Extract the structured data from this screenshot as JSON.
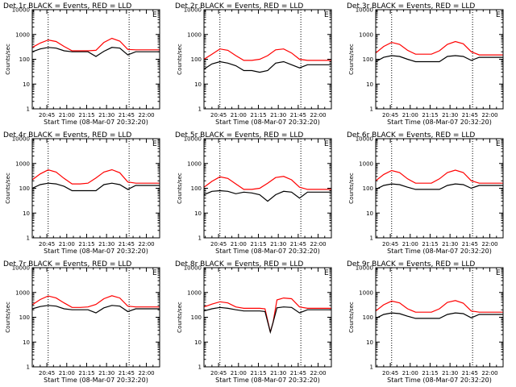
{
  "figure": {
    "background": "#ffffff",
    "axis_color": "#000000",
    "events_color": "#000000",
    "lld_color": "#ff0000"
  },
  "chart_data": [
    {
      "type": "line",
      "title": "Det 1r BLACK = Events, RED = LLD",
      "corner_label": "E",
      "xlabel": "Start Time (08-Mar-07 20:32:20)",
      "ylabel": "Counts/sec",
      "xlim": [
        "20:34",
        "22:10"
      ],
      "ylim": [
        1,
        10000
      ],
      "yscale": "log",
      "x_ticks": [
        "20:45",
        "21:00",
        "21:15",
        "21:30",
        "21:45",
        "22:00"
      ],
      "y_ticks": [
        "1",
        "10",
        "100",
        "1000",
        "10000"
      ],
      "marker_lines": [
        "20:46",
        "21:47"
      ],
      "x": [
        "20:34",
        "20:40",
        "20:46",
        "20:52",
        "20:58",
        "21:04",
        "21:10",
        "21:16",
        "21:22",
        "21:28",
        "21:34",
        "21:40",
        "21:46",
        "21:52",
        "21:58",
        "22:04",
        "22:10"
      ],
      "series": [
        {
          "role": "lld",
          "values": [
            300,
            450,
            600,
            520,
            330,
            220,
            220,
            220,
            230,
            480,
            700,
            540,
            250,
            240,
            240,
            240,
            240
          ]
        },
        {
          "role": "events",
          "values": [
            200,
            260,
            300,
            280,
            220,
            200,
            200,
            200,
            130,
            210,
            300,
            280,
            150,
            200,
            200,
            200,
            200
          ]
        }
      ]
    },
    {
      "type": "line",
      "title": "Det 2r BLACK = Events, RED = LLD",
      "corner_label": "E",
      "xlabel": "Start Time (08-Mar-07 20:32:20)",
      "ylabel": "Counts/sec",
      "xlim": [
        "20:34",
        "22:10"
      ],
      "ylim": [
        1,
        10000
      ],
      "yscale": "log",
      "x_ticks": [
        "20:45",
        "21:00",
        "21:15",
        "21:30",
        "21:45",
        "22:00"
      ],
      "y_ticks": [
        "1",
        "10",
        "100",
        "1000",
        "10000"
      ],
      "marker_lines": [
        "20:46",
        "21:47"
      ],
      "x": [
        "20:34",
        "20:40",
        "20:46",
        "20:52",
        "20:58",
        "21:04",
        "21:10",
        "21:16",
        "21:22",
        "21:28",
        "21:34",
        "21:40",
        "21:46",
        "21:52",
        "21:58",
        "22:04",
        "22:10"
      ],
      "series": [
        {
          "role": "lld",
          "values": [
            100,
            160,
            260,
            230,
            140,
            90,
            90,
            100,
            140,
            240,
            260,
            180,
            100,
            90,
            90,
            90,
            90
          ]
        },
        {
          "role": "events",
          "values": [
            40,
            65,
            80,
            70,
            55,
            35,
            35,
            30,
            35,
            70,
            80,
            60,
            45,
            60,
            60,
            60,
            60
          ]
        }
      ]
    },
    {
      "type": "line",
      "title": "Det 3r BLACK = Events, RED = LLD",
      "corner_label": "E",
      "xlabel": "Start Time (08-Mar-07 20:32:20)",
      "ylabel": "Counts/sec",
      "xlim": [
        "20:34",
        "22:10"
      ],
      "ylim": [
        1,
        10000
      ],
      "yscale": "log",
      "x_ticks": [
        "20:45",
        "21:00",
        "21:15",
        "21:30",
        "21:45",
        "22:00"
      ],
      "y_ticks": [
        "1",
        "10",
        "100",
        "1000",
        "10000"
      ],
      "marker_lines": [
        "20:46",
        "21:47"
      ],
      "x": [
        "20:34",
        "20:40",
        "20:46",
        "20:52",
        "20:58",
        "21:04",
        "21:10",
        "21:16",
        "21:22",
        "21:28",
        "21:34",
        "21:40",
        "21:46",
        "21:52",
        "21:58",
        "22:04",
        "22:10"
      ],
      "series": [
        {
          "role": "lld",
          "values": [
            180,
            330,
            480,
            400,
            230,
            160,
            160,
            160,
            220,
            400,
            520,
            420,
            200,
            150,
            150,
            150,
            150
          ]
        },
        {
          "role": "events",
          "values": [
            80,
            120,
            140,
            130,
            100,
            80,
            80,
            80,
            80,
            130,
            140,
            130,
            90,
            120,
            120,
            120,
            120
          ]
        }
      ]
    },
    {
      "type": "line",
      "title": "Det 4r BLACK = Events, RED = LLD",
      "corner_label": "E",
      "xlabel": "Start Time (08-Mar-07 20:32:20)",
      "ylabel": "Counts/sec",
      "xlim": [
        "20:34",
        "22:10"
      ],
      "ylim": [
        1,
        10000
      ],
      "yscale": "log",
      "x_ticks": [
        "20:45",
        "21:00",
        "21:15",
        "21:30",
        "21:45",
        "22:00"
      ],
      "y_ticks": [
        "1",
        "10",
        "100",
        "1000",
        "10000"
      ],
      "marker_lines": [
        "20:46",
        "21:47"
      ],
      "x": [
        "20:34",
        "20:40",
        "20:46",
        "20:52",
        "20:58",
        "21:04",
        "21:10",
        "21:16",
        "21:22",
        "21:28",
        "21:34",
        "21:40",
        "21:46",
        "21:52",
        "21:58",
        "22:04",
        "22:10"
      ],
      "series": [
        {
          "role": "lld",
          "values": [
            220,
            380,
            550,
            450,
            250,
            150,
            150,
            160,
            260,
            450,
            560,
            420,
            180,
            160,
            160,
            160,
            160
          ]
        },
        {
          "role": "events",
          "values": [
            100,
            140,
            160,
            150,
            120,
            80,
            80,
            80,
            80,
            140,
            160,
            140,
            90,
            130,
            130,
            130,
            130
          ]
        }
      ]
    },
    {
      "type": "line",
      "title": "Det 5r BLACK = Events, RED = LLD",
      "corner_label": "E",
      "xlabel": "Start Time (08-Mar-07 20:32:20)",
      "ylabel": "Counts/sec",
      "xlim": [
        "20:34",
        "22:10"
      ],
      "ylim": [
        1,
        10000
      ],
      "yscale": "log",
      "x_ticks": [
        "20:45",
        "21:00",
        "21:15",
        "21:30",
        "21:45",
        "22:00"
      ],
      "y_ticks": [
        "1",
        "10",
        "100",
        "1000",
        "10000"
      ],
      "marker_lines": [
        "20:46",
        "21:47"
      ],
      "x": [
        "20:34",
        "20:40",
        "20:46",
        "20:52",
        "20:58",
        "21:04",
        "21:10",
        "21:16",
        "21:22",
        "21:28",
        "21:34",
        "21:40",
        "21:46",
        "21:52",
        "21:58",
        "22:04",
        "22:10"
      ],
      "series": [
        {
          "role": "lld",
          "values": [
            110,
            190,
            290,
            250,
            150,
            90,
            90,
            100,
            160,
            270,
            300,
            220,
            110,
            90,
            90,
            90,
            90
          ]
        },
        {
          "role": "events",
          "values": [
            55,
            75,
            80,
            75,
            60,
            70,
            65,
            55,
            30,
            55,
            75,
            70,
            40,
            70,
            70,
            70,
            70
          ]
        }
      ]
    },
    {
      "type": "line",
      "title": "Det 6r BLACK = Events, RED = LLD",
      "corner_label": "E",
      "xlabel": "Start Time (08-Mar-07 20:32:20)",
      "ylabel": "Counts/sec",
      "xlim": [
        "20:34",
        "22:10"
      ],
      "ylim": [
        1,
        10000
      ],
      "yscale": "log",
      "x_ticks": [
        "20:45",
        "21:00",
        "21:15",
        "21:30",
        "21:45",
        "22:00"
      ],
      "y_ticks": [
        "1",
        "10",
        "100",
        "1000",
        "10000"
      ],
      "marker_lines": [
        "20:46",
        "21:47"
      ],
      "x": [
        "20:34",
        "20:40",
        "20:46",
        "20:52",
        "20:58",
        "21:04",
        "21:10",
        "21:16",
        "21:22",
        "21:28",
        "21:34",
        "21:40",
        "21:46",
        "21:52",
        "21:58",
        "22:04",
        "22:10"
      ],
      "series": [
        {
          "role": "lld",
          "values": [
            200,
            360,
            520,
            430,
            240,
            160,
            160,
            160,
            240,
            430,
            540,
            430,
            200,
            160,
            160,
            160,
            160
          ]
        },
        {
          "role": "events",
          "values": [
            90,
            130,
            150,
            140,
            110,
            90,
            90,
            90,
            90,
            130,
            150,
            140,
            100,
            130,
            130,
            130,
            130
          ]
        }
      ]
    },
    {
      "type": "line",
      "title": "Det 7r BLACK = Events, RED = LLD",
      "corner_label": "E",
      "xlabel": "Start Time (08-Mar-07 20:32:20)",
      "ylabel": "Counts/sec",
      "xlim": [
        "20:34",
        "22:10"
      ],
      "ylim": [
        1,
        10000
      ],
      "yscale": "log",
      "x_ticks": [
        "20:45",
        "21:00",
        "21:15",
        "21:30",
        "21:45",
        "22:00"
      ],
      "y_ticks": [
        "1",
        "10",
        "100",
        "1000",
        "10000"
      ],
      "marker_lines": [
        "20:46",
        "21:47"
      ],
      "x": [
        "20:34",
        "20:40",
        "20:46",
        "20:52",
        "20:58",
        "21:04",
        "21:10",
        "21:16",
        "21:22",
        "21:28",
        "21:34",
        "21:40",
        "21:46",
        "21:52",
        "21:58",
        "22:04",
        "22:10"
      ],
      "series": [
        {
          "role": "lld",
          "values": [
            320,
            520,
            720,
            600,
            380,
            250,
            250,
            260,
            330,
            560,
            740,
            600,
            280,
            260,
            260,
            260,
            260
          ]
        },
        {
          "role": "events",
          "values": [
            220,
            270,
            300,
            280,
            220,
            200,
            200,
            200,
            150,
            240,
            300,
            280,
            170,
            220,
            220,
            220,
            220
          ]
        }
      ]
    },
    {
      "type": "line",
      "title": "Det 8r BLACK = Events, RED = LLD",
      "corner_label": "E",
      "xlabel": "Start Time (08-Mar-07 20:32:20)",
      "ylabel": "Counts/sec",
      "xlim": [
        "20:34",
        "22:10"
      ],
      "ylim": [
        1,
        10000
      ],
      "yscale": "log",
      "x_ticks": [
        "20:45",
        "21:00",
        "21:15",
        "21:30",
        "21:45",
        "22:00"
      ],
      "y_ticks": [
        "1",
        "10",
        "100",
        "1000",
        "10000"
      ],
      "marker_lines": [
        "20:46",
        "21:47"
      ],
      "x": [
        "20:34",
        "20:40",
        "20:46",
        "20:52",
        "20:58",
        "21:04",
        "21:10",
        "21:16",
        "21:20",
        "21:24",
        "21:26",
        "21:29",
        "21:34",
        "21:40",
        "21:46",
        "21:52",
        "21:58",
        "22:04",
        "22:10"
      ],
      "series": [
        {
          "role": "lld",
          "values": [
            260,
            340,
            420,
            380,
            260,
            230,
            230,
            230,
            220,
            25,
            60,
            500,
            600,
            560,
            260,
            230,
            230,
            230,
            230
          ]
        },
        {
          "role": "events",
          "values": [
            180,
            220,
            250,
            230,
            200,
            180,
            180,
            180,
            170,
            25,
            60,
            240,
            260,
            250,
            150,
            200,
            200,
            200,
            200
          ]
        }
      ]
    },
    {
      "type": "line",
      "title": "Det 9r BLACK = Events, RED = LLD",
      "corner_label": "E",
      "xlabel": "Start Time (08-Mar-07 20:32:20)",
      "ylabel": "Counts/sec",
      "xlim": [
        "20:34",
        "22:10"
      ],
      "ylim": [
        1,
        10000
      ],
      "yscale": "log",
      "x_ticks": [
        "20:45",
        "21:00",
        "21:15",
        "21:30",
        "21:45",
        "22:00"
      ],
      "y_ticks": [
        "1",
        "10",
        "100",
        "1000",
        "10000"
      ],
      "marker_lines": [
        "20:46",
        "21:47"
      ],
      "x": [
        "20:34",
        "20:40",
        "20:46",
        "20:52",
        "20:58",
        "21:04",
        "21:10",
        "21:16",
        "21:22",
        "21:28",
        "21:34",
        "21:40",
        "21:46",
        "21:52",
        "21:58",
        "22:04",
        "22:10"
      ],
      "series": [
        {
          "role": "lld",
          "values": [
            180,
            320,
            450,
            380,
            220,
            160,
            160,
            160,
            220,
            400,
            470,
            370,
            180,
            160,
            160,
            160,
            160
          ]
        },
        {
          "role": "events",
          "values": [
            90,
            130,
            150,
            140,
            110,
            90,
            90,
            90,
            90,
            130,
            150,
            140,
            95,
            130,
            130,
            130,
            130
          ]
        }
      ]
    }
  ]
}
